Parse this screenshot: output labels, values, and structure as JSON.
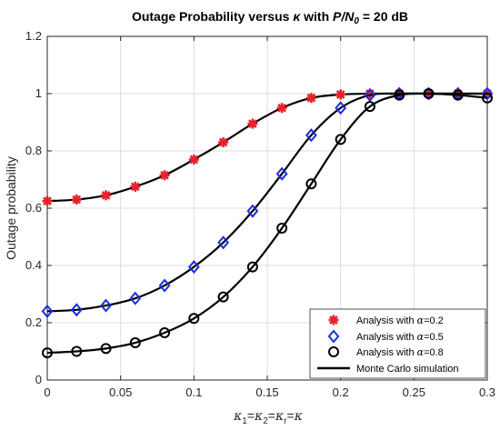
{
  "chart_data": {
    "type": "line",
    "title": {
      "prefix": "Outage Probability versus ",
      "kappa": "κ",
      "middle": " with ",
      "pn_italic": "P/N",
      "pn_sub": "0",
      "suffix": " = 20 dB"
    },
    "xlabel": {
      "parts": [
        {
          "t": "κ",
          "i": true
        },
        {
          "t": "1",
          "sub": true
        },
        {
          "t": "=",
          "i": false
        },
        {
          "t": "κ",
          "i": true
        },
        {
          "t": "2",
          "sub": true
        },
        {
          "t": "=",
          "i": false
        },
        {
          "t": "κ",
          "i": true
        },
        {
          "t": "r",
          "sub": true
        },
        {
          "t": "=",
          "i": false
        },
        {
          "t": "κ",
          "i": true
        }
      ]
    },
    "ylabel": "Outage probability",
    "xlim": [
      0,
      0.3
    ],
    "ylim": [
      0,
      1.2
    ],
    "xticks": [
      0,
      0.05,
      0.1,
      0.15,
      0.2,
      0.25,
      0.3
    ],
    "xtick_labels": [
      "0",
      "0.05",
      "0.1",
      "0.15",
      "0.2",
      "0.25",
      "0.3"
    ],
    "yticks": [
      0,
      0.2,
      0.4,
      0.6,
      0.8,
      1,
      1.2
    ],
    "ytick_labels": [
      "0",
      "0.2",
      "0.4",
      "0.6",
      "0.8",
      "1",
      "1.2"
    ],
    "grid": true,
    "legend_position": "bottom-right",
    "x": [
      0,
      0.02,
      0.04,
      0.06,
      0.08,
      0.1,
      0.12,
      0.14,
      0.16,
      0.18,
      0.2,
      0.22,
      0.24,
      0.26,
      0.28,
      0.3
    ],
    "series": [
      {
        "name": "Analysis with α=0.2",
        "legend_prefix": "Analysis with ",
        "legend_alpha": "α",
        "legend_value": "=0.2",
        "marker": "asterisk",
        "color": "#e8212b",
        "values": [
          0.625,
          0.63,
          0.645,
          0.675,
          0.715,
          0.77,
          0.83,
          0.895,
          0.95,
          0.985,
          0.997,
          1.0,
          1.0,
          1.0,
          1.0,
          1.0
        ]
      },
      {
        "name": "Analysis with α=0.5",
        "legend_prefix": "Analysis with ",
        "legend_alpha": "α",
        "legend_value": "=0.5",
        "marker": "diamond",
        "color": "#1a2fe0",
        "values": [
          0.24,
          0.245,
          0.26,
          0.285,
          0.33,
          0.395,
          0.48,
          0.59,
          0.72,
          0.855,
          0.95,
          0.995,
          1.0,
          1.0,
          1.0,
          1.0
        ]
      },
      {
        "name": "Analysis with α=0.8",
        "legend_prefix": "Analysis with ",
        "legend_alpha": "α",
        "legend_value": "=0.8",
        "marker": "circle",
        "color": "#000000",
        "values": [
          0.095,
          0.1,
          0.11,
          0.13,
          0.165,
          0.215,
          0.29,
          0.395,
          0.53,
          0.685,
          0.84,
          0.955,
          0.995,
          1.0,
          0.995,
          0.985
        ]
      }
    ],
    "simulation": {
      "name": "Monte Carlo simulation",
      "color": "#000000",
      "style": "solid"
    }
  }
}
